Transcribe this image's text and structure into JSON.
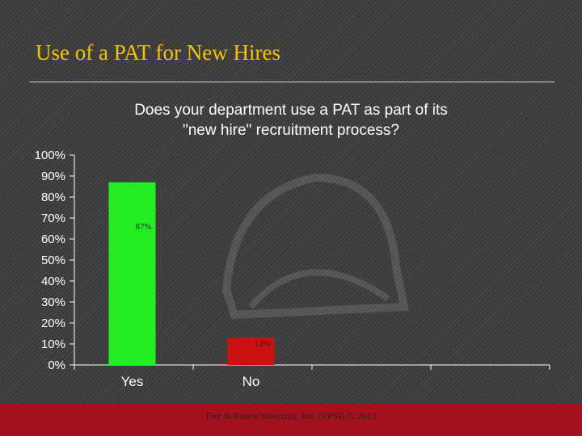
{
  "slide": {
    "title": "Use of a PAT for New Hires",
    "footer": "Fire & Police Selection, Inc. (FPSI) © 2013"
  },
  "colors": {
    "title": "#f5c400",
    "yes_bar": "#22ee22",
    "no_bar": "#cc1111",
    "footer_bar": "#a3121c",
    "background": "#404040"
  },
  "chart_data": {
    "type": "bar",
    "title_lines": [
      "Does your department use a PAT as part of its",
      "\"new hire\" recruitment process?"
    ],
    "categories": [
      "Yes",
      "No"
    ],
    "values": [
      87,
      13
    ],
    "data_labels": [
      "87%",
      "13%"
    ],
    "bar_colors": [
      "#22ee22",
      "#cc1111"
    ],
    "yticks": [
      "0%",
      "10%",
      "20%",
      "30%",
      "40%",
      "50%",
      "60%",
      "70%",
      "80%",
      "90%",
      "100%"
    ],
    "ylim": [
      0,
      100
    ],
    "grid": false,
    "legend": "none"
  }
}
